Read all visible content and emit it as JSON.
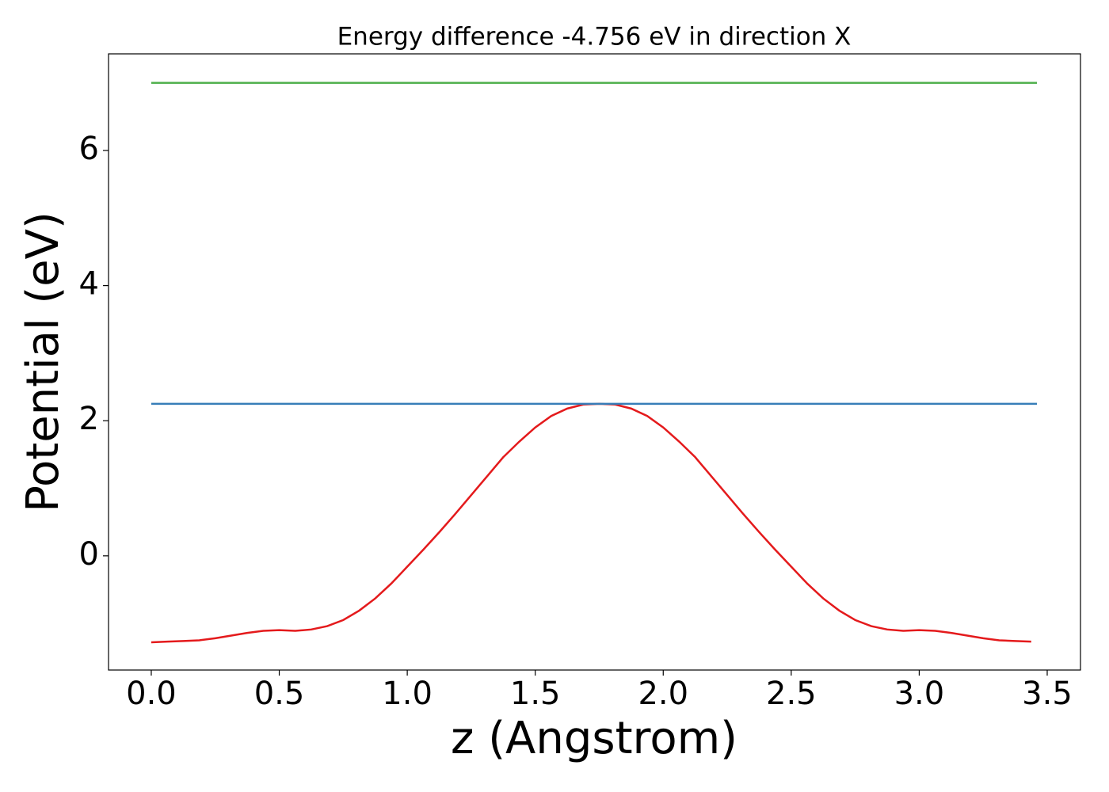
{
  "chart_data": {
    "type": "line",
    "title": "Energy difference -4.756 eV in direction X",
    "x_label": "z (Angstrom)",
    "y_label": "Potential (eV)",
    "xlim": [
      -0.167,
      3.63
    ],
    "ylim": [
      -1.69,
      7.43
    ],
    "xticks": [
      {
        "value": 0,
        "label": "0.0"
      },
      {
        "value": 0.5,
        "label": "0.5"
      },
      {
        "value": 1,
        "label": "1.0"
      },
      {
        "value": 1.5,
        "label": "1.5"
      },
      {
        "value": 2,
        "label": "2.0"
      },
      {
        "value": 2.5,
        "label": "2.5"
      },
      {
        "value": 3,
        "label": "3.0"
      },
      {
        "value": 3.5,
        "label": "3.5"
      }
    ],
    "yticks": [
      0,
      2,
      4,
      6
    ],
    "series": [
      {
        "color": "#e41a1c",
        "x": [
          0,
          0.0625,
          0.125,
          0.1875,
          0.25,
          0.3125,
          0.375,
          0.4375,
          0.5,
          0.5625,
          0.625,
          0.6875,
          0.75,
          0.8125,
          0.875,
          0.9375,
          1.0,
          1.0625,
          1.125,
          1.1875,
          1.25,
          1.3125,
          1.375,
          1.4375,
          1.5,
          1.5625,
          1.625,
          1.6875,
          1.75,
          1.8125,
          1.875,
          1.9375,
          2.0,
          2.0625,
          2.125,
          2.1875,
          2.25,
          2.3125,
          2.375,
          2.4375,
          2.5,
          2.5625,
          2.625,
          2.6875,
          2.75,
          2.8125,
          2.875,
          2.9375,
          3.0,
          3.0625,
          3.125,
          3.1875,
          3.25,
          3.3125,
          3.375,
          3.4375
        ],
        "values": [
          -1.28,
          -1.27,
          -1.26,
          -1.25,
          -1.22,
          -1.18,
          -1.14,
          -1.11,
          -1.1,
          -1.11,
          -1.09,
          -1.04,
          -0.95,
          -0.81,
          -0.63,
          -0.41,
          -0.16,
          0.09,
          0.35,
          0.62,
          0.9,
          1.18,
          1.46,
          1.69,
          1.9,
          2.07,
          2.18,
          2.24,
          2.25,
          2.24,
          2.18,
          2.07,
          1.9,
          1.69,
          1.46,
          1.18,
          0.9,
          0.62,
          0.35,
          0.09,
          -0.16,
          -0.41,
          -0.63,
          -0.81,
          -0.95,
          -1.04,
          -1.09,
          -1.11,
          -1.1,
          -1.11,
          -1.14,
          -1.18,
          -1.22,
          -1.25,
          -1.26,
          -1.27
        ]
      },
      {
        "color": "#377eb8",
        "x": [
          0,
          3.46
        ],
        "values": [
          2.25,
          2.25
        ]
      },
      {
        "color": "#4daf4a",
        "x": [
          0,
          3.46
        ],
        "values": [
          7.0,
          7.0
        ]
      }
    ]
  }
}
